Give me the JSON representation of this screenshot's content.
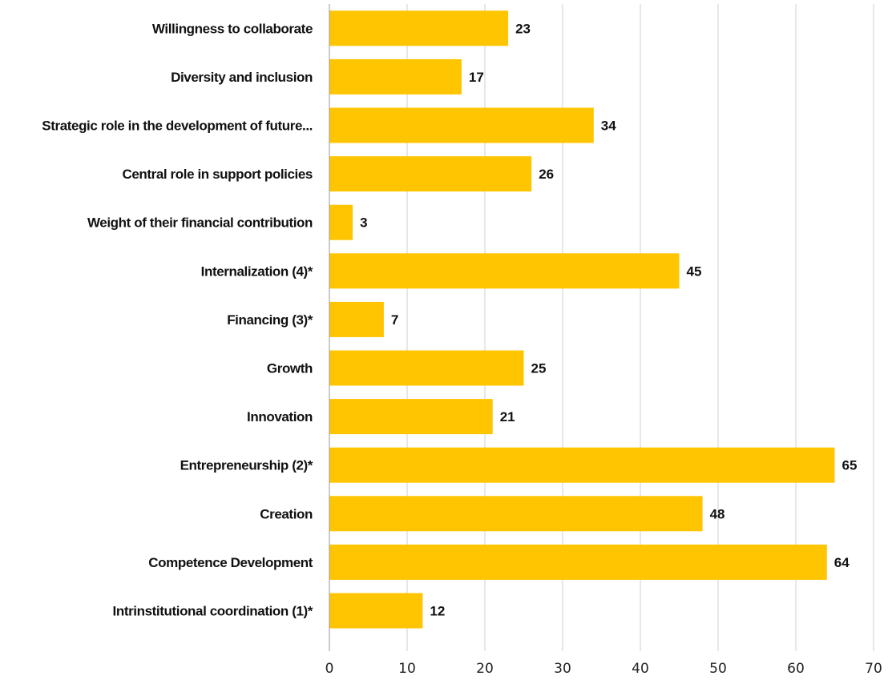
{
  "chart_data": {
    "type": "bar",
    "orientation": "horizontal",
    "categories": [
      "Willingness  to collaborate",
      "Diversity and inclusion",
      "Strategic role in the development of  future...",
      "Central role in support policies",
      "Weight of their financial contribution",
      "Internalization (4)*",
      "Financing (3)*",
      "Growth",
      "Innovation",
      "Entrepreneurship (2)*",
      "Creation",
      "Competence Development",
      "Intrinstitutional coordination (1)*"
    ],
    "values": [
      23,
      17,
      34,
      26,
      3,
      45,
      7,
      25,
      21,
      65,
      48,
      64,
      12
    ],
    "value_labels": [
      "23",
      "17",
      "34",
      "26",
      "3",
      "45",
      "7",
      "25",
      "21",
      "65",
      "48",
      "64",
      "12"
    ],
    "xlim": [
      0,
      70
    ],
    "xticks": [
      "0",
      "10",
      "20",
      "30",
      "40",
      "50",
      "60",
      "70"
    ],
    "grid": "vertical",
    "legend": "none",
    "bar_color": "#FFC500"
  }
}
